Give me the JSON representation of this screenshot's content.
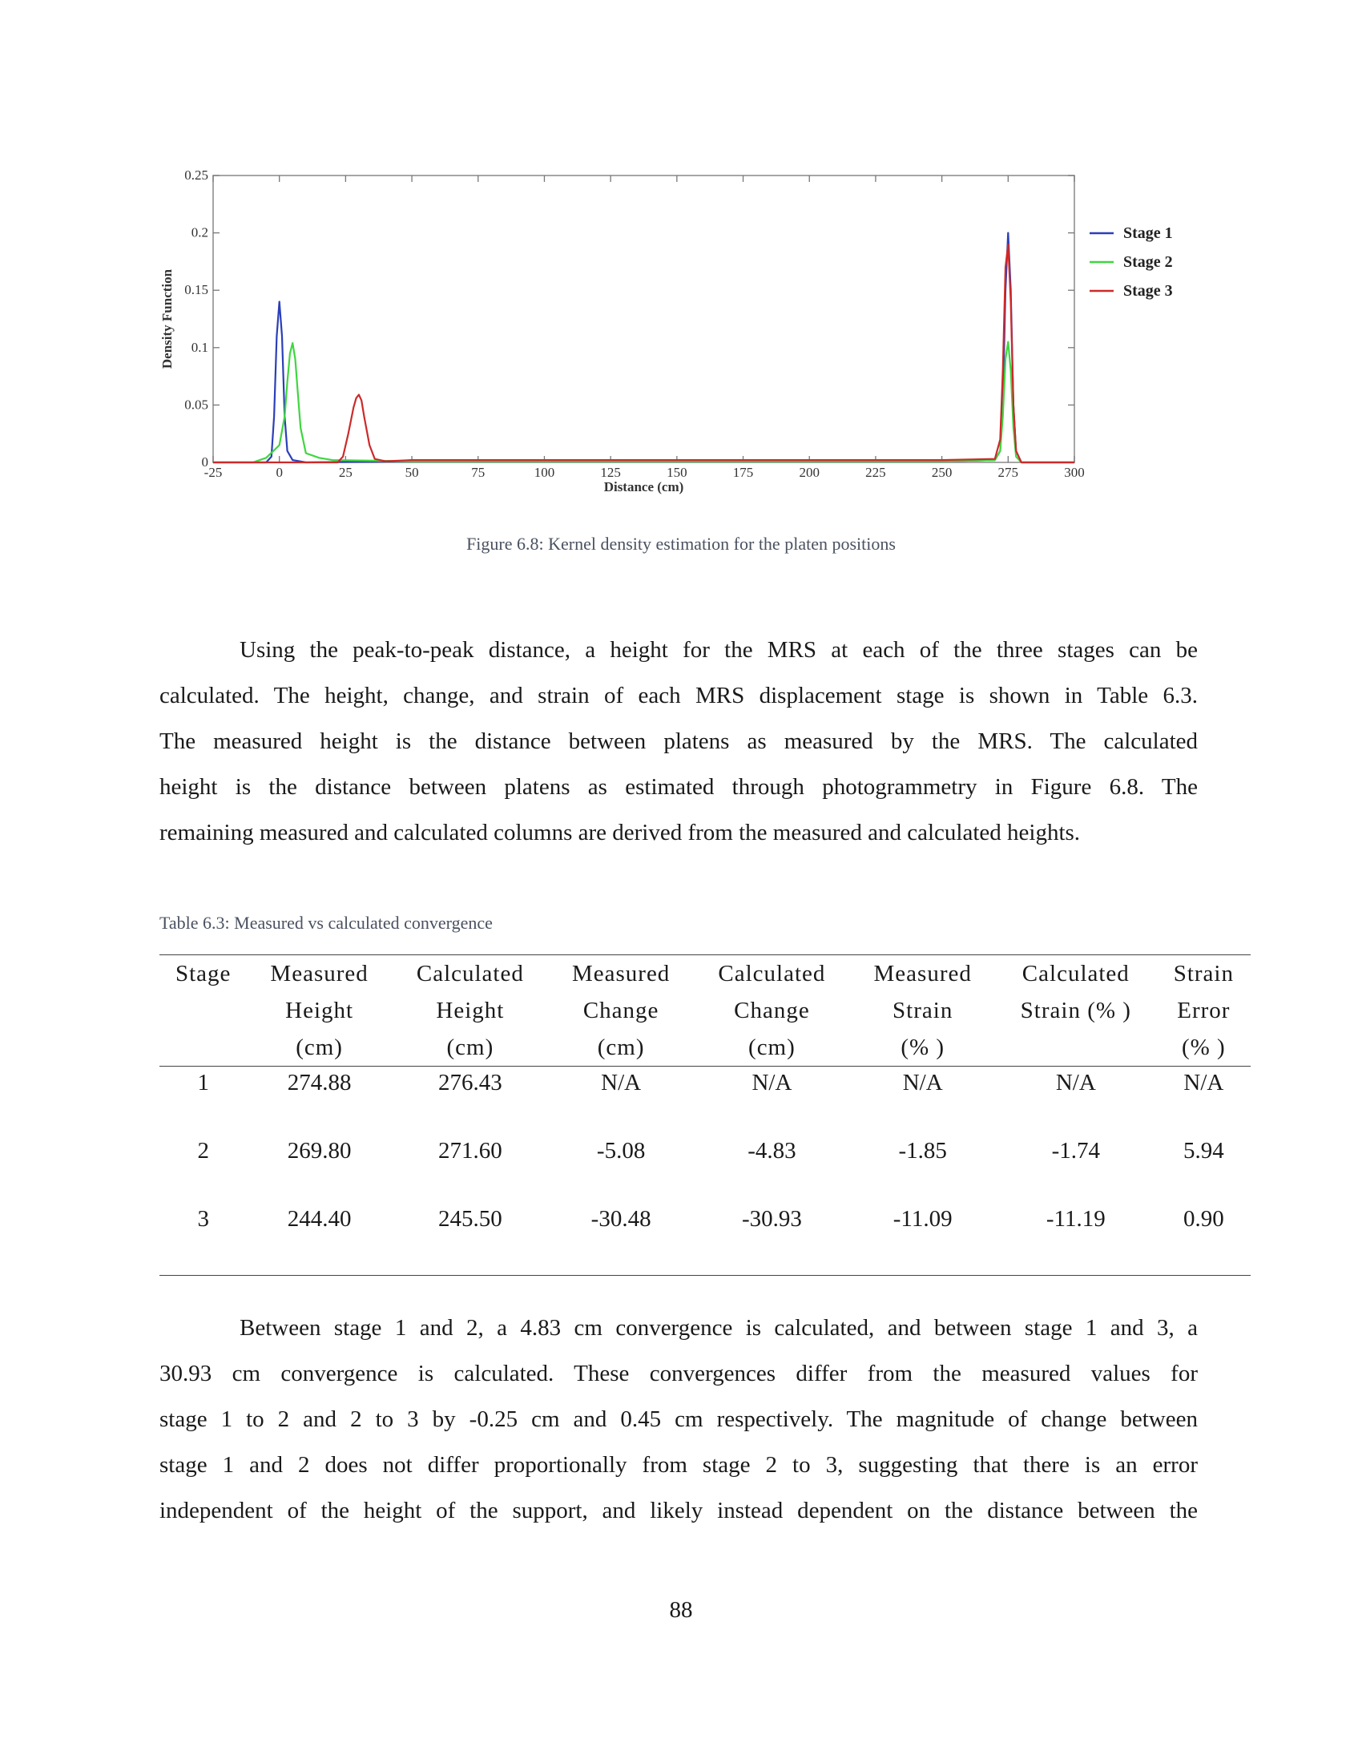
{
  "figure": {
    "caption": "Figure 6.8:  Kernel density estimation for the platen positions"
  },
  "chart_data": {
    "type": "line",
    "title": "",
    "xlabel": "Distance (cm)",
    "ylabel": "Density Function",
    "xlim": [
      -25,
      300
    ],
    "ylim": [
      0,
      0.25
    ],
    "x_ticks": [
      -25,
      0,
      25,
      50,
      75,
      100,
      125,
      150,
      175,
      200,
      225,
      250,
      275,
      300
    ],
    "y_ticks": [
      0,
      0.05,
      0.1,
      0.15,
      0.2,
      0.25
    ],
    "y_tick_labels": [
      "0",
      "0.05",
      "0.1",
      "0.15",
      "0.2",
      "0.25"
    ],
    "legend_position": "top-right",
    "grid": false,
    "series": [
      {
        "name": "Stage 1",
        "color": "#2b3fb8",
        "x": [
          -25,
          -5,
          -3,
          -2,
          -1,
          0,
          1,
          2,
          3,
          5,
          10,
          50,
          100,
          150,
          200,
          250,
          270,
          272,
          273,
          274,
          275,
          276,
          277,
          278,
          280,
          300
        ],
        "y": [
          0,
          0,
          0.005,
          0.04,
          0.11,
          0.14,
          0.11,
          0.04,
          0.01,
          0.002,
          0,
          0.001,
          0.001,
          0.001,
          0.001,
          0.001,
          0.002,
          0.01,
          0.05,
          0.15,
          0.2,
          0.15,
          0.05,
          0.01,
          0,
          0
        ]
      },
      {
        "name": "Stage 2",
        "color": "#3fd640",
        "x": [
          -25,
          -10,
          -5,
          0,
          2,
          3,
          4,
          5,
          6,
          7,
          8,
          10,
          15,
          20,
          50,
          100,
          150,
          200,
          250,
          270,
          272,
          273,
          274,
          275,
          276,
          277,
          278,
          280,
          300
        ],
        "y": [
          0,
          0,
          0.004,
          0.015,
          0.04,
          0.07,
          0.095,
          0.104,
          0.09,
          0.06,
          0.03,
          0.008,
          0.004,
          0.002,
          0.001,
          0.001,
          0.001,
          0.001,
          0.001,
          0.002,
          0.01,
          0.04,
          0.09,
          0.105,
          0.08,
          0.03,
          0.005,
          0,
          0
        ]
      },
      {
        "name": "Stage 3",
        "color": "#cc2a2a",
        "x": [
          -25,
          22,
          24,
          26,
          28,
          29,
          30,
          31,
          32,
          34,
          36,
          40,
          50,
          100,
          150,
          200,
          250,
          270,
          272,
          273,
          274,
          275,
          276,
          277,
          278,
          280,
          300
        ],
        "y": [
          0,
          0,
          0.005,
          0.025,
          0.048,
          0.056,
          0.059,
          0.054,
          0.04,
          0.015,
          0.003,
          0.001,
          0.002,
          0.002,
          0.002,
          0.002,
          0.002,
          0.003,
          0.02,
          0.08,
          0.17,
          0.19,
          0.14,
          0.05,
          0.01,
          0,
          0
        ]
      }
    ]
  },
  "paragraph1": [
    "Using the peak-to-peak distance, a height for the MRS at each of the three stages can be",
    "calculated.  The height, change, and strain of each MRS displacement stage is shown in Table 6.3.",
    "The measured height is the distance between platens as measured by the MRS.  The calculated",
    "height is the distance between platens as estimated through photogrammetry in Figure 6.8.  The",
    "remaining measured and calculated columns are derived from the measured and calculated heights."
  ],
  "table": {
    "caption": "Table 6.3:  Measured vs calculated convergence",
    "headers": [
      [
        "Stage"
      ],
      [
        "Measured",
        "Height",
        "(cm)"
      ],
      [
        "Calculated",
        "Height",
        "(cm)"
      ],
      [
        "Measured",
        "Change",
        "(cm)"
      ],
      [
        "Calculated",
        "Change",
        "(cm)"
      ],
      [
        "Measured",
        "Strain",
        "(% )"
      ],
      [
        "Calculated",
        "Strain (% )"
      ],
      [
        "Strain",
        "Error",
        "(% )"
      ]
    ],
    "rows": [
      [
        "1",
        "274.88",
        "276.43",
        "N/A",
        "N/A",
        "N/A",
        "N/A",
        "N/A"
      ],
      [
        "2",
        "269.80",
        "271.60",
        "-5.08",
        "-4.83",
        "-1.85",
        "-1.74",
        "5.94"
      ],
      [
        "3",
        "244.40",
        "245.50",
        "-30.48",
        "-30.93",
        "-11.09",
        "-11.19",
        "0.90"
      ]
    ]
  },
  "paragraph2": [
    "Between stage 1 and 2, a 4.83 cm convergence is calculated, and between stage 1 and 3, a",
    "30.93 cm convergence is calculated.  These convergences differ from the measured values for",
    "stage 1 to 2 and 2 to 3 by -0.25 cm and 0.45 cm respectively.  The magnitude of change between",
    "stage 1 and 2 does not differ proportionally from stage 2 to 3, suggesting that there is an error",
    "independent of the height of the support, and likely instead dependent on the distance between the"
  ],
  "page_number": "88"
}
